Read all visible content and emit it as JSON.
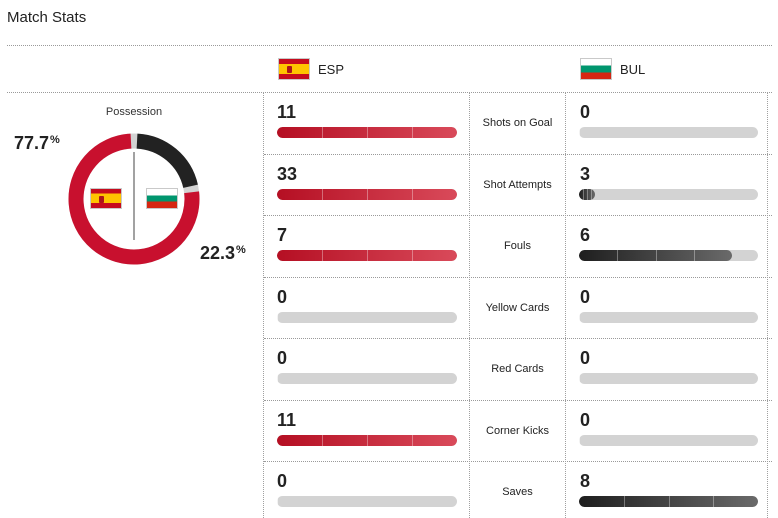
{
  "title": "Match Stats",
  "teams": {
    "home": {
      "abbr": "ESP",
      "flag": "spain-flag"
    },
    "away": {
      "abbr": "BUL",
      "flag": "bulgaria-flag"
    }
  },
  "possession": {
    "label": "Possession",
    "home_pct": "77.7",
    "away_pct": "22.3",
    "pct_symbol": "%",
    "home_value": 77.7,
    "away_value": 22.3
  },
  "colors": {
    "home": "#c8102e",
    "away": "#222222",
    "track": "#d3d3d3"
  },
  "stats": [
    {
      "label": "Shots on Goal",
      "home": "11",
      "away": "0",
      "home_value": 11,
      "away_value": 0
    },
    {
      "label": "Shot Attempts",
      "home": "33",
      "away": "3",
      "home_value": 33,
      "away_value": 3
    },
    {
      "label": "Fouls",
      "home": "7",
      "away": "6",
      "home_value": 7,
      "away_value": 6
    },
    {
      "label": "Yellow Cards",
      "home": "0",
      "away": "0",
      "home_value": 0,
      "away_value": 0
    },
    {
      "label": "Red Cards",
      "home": "0",
      "away": "0",
      "home_value": 0,
      "away_value": 0
    },
    {
      "label": "Corner Kicks",
      "home": "11",
      "away": "0",
      "home_value": 11,
      "away_value": 0
    },
    {
      "label": "Saves",
      "home": "0",
      "away": "8",
      "home_value": 0,
      "away_value": 8
    }
  ]
}
